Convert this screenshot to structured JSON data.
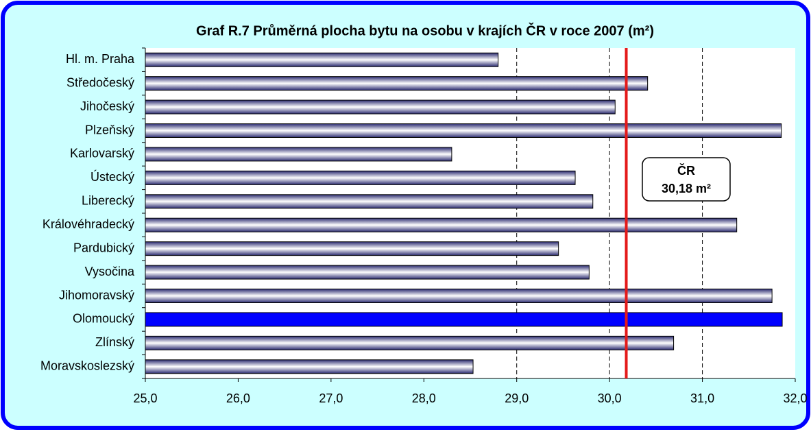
{
  "chart_data": {
    "type": "bar",
    "orientation": "horizontal",
    "title": "Graf R.7 Průměrná plocha bytu na osobu v krajích ČR v roce 2007 (m²)",
    "categories": [
      "Hl. m. Praha",
      "Středočeský",
      "Jihočeský",
      "Plzeňský",
      "Karlovarský",
      "Ústecký",
      "Liberecký",
      "Královéhradecký",
      "Pardubický",
      "Vysočina",
      "Jihomoravský",
      "Olomoucký",
      "Zlínský",
      "Moravskoslezský"
    ],
    "values": [
      28.8,
      30.41,
      30.06,
      31.85,
      28.3,
      29.63,
      29.82,
      31.37,
      29.45,
      29.78,
      31.75,
      31.86,
      30.69,
      28.53
    ],
    "color": "#2a2a70",
    "highlight": {
      "index": 11,
      "color": "#0000ff"
    },
    "xlim": [
      25,
      32
    ],
    "xticks": [
      {
        "value": 25,
        "label": "25,0"
      },
      {
        "value": 26,
        "label": "26,0"
      },
      {
        "value": 27,
        "label": "27,0"
      },
      {
        "value": 28,
        "label": "28,0"
      },
      {
        "value": 29,
        "label": "29,0"
      },
      {
        "value": 30,
        "label": "30,0"
      },
      {
        "value": 31,
        "label": "31,0"
      },
      {
        "value": 32,
        "label": "32,0"
      }
    ],
    "gridlines": [
      29,
      30,
      31
    ],
    "reference": {
      "value": 30.18,
      "color": "#e41a1a",
      "label_lines": [
        "ČR",
        "30,18 m²"
      ]
    }
  }
}
